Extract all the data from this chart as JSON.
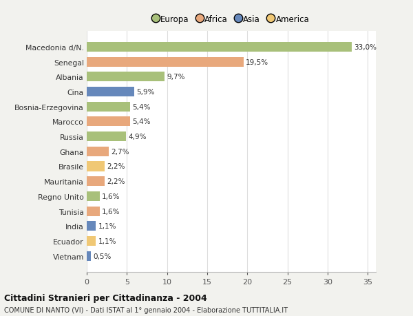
{
  "countries": [
    "Macedonia d/N.",
    "Senegal",
    "Albania",
    "Cina",
    "Bosnia-Erzegovina",
    "Marocco",
    "Russia",
    "Ghana",
    "Brasile",
    "Mauritania",
    "Regno Unito",
    "Tunisia",
    "India",
    "Ecuador",
    "Vietnam"
  ],
  "values": [
    33.0,
    19.5,
    9.7,
    5.9,
    5.4,
    5.4,
    4.9,
    2.7,
    2.2,
    2.2,
    1.6,
    1.6,
    1.1,
    1.1,
    0.5
  ],
  "labels": [
    "33,0%",
    "19,5%",
    "9,7%",
    "5,9%",
    "5,4%",
    "5,4%",
    "4,9%",
    "2,7%",
    "2,2%",
    "2,2%",
    "1,6%",
    "1,6%",
    "1,1%",
    "1,1%",
    "0,5%"
  ],
  "colors": [
    "#a8c07a",
    "#e8a87c",
    "#a8c07a",
    "#6688bb",
    "#a8c07a",
    "#e8a87c",
    "#a8c07a",
    "#e8a87c",
    "#f0c875",
    "#e8a87c",
    "#a8c07a",
    "#e8a87c",
    "#6688bb",
    "#f0c875",
    "#6688bb"
  ],
  "legend": [
    {
      "label": "Europa",
      "color": "#a8c07a"
    },
    {
      "label": "Africa",
      "color": "#e8a87c"
    },
    {
      "label": "Asia",
      "color": "#6688bb"
    },
    {
      "label": "America",
      "color": "#f0c875"
    }
  ],
  "title": "Cittadini Stranieri per Cittadinanza - 2004",
  "subtitle": "COMUNE DI NANTO (VI) - Dati ISTAT al 1° gennaio 2004 - Elaborazione TUTTITALIA.IT",
  "xlim": [
    0,
    36
  ],
  "xticks": [
    0,
    5,
    10,
    15,
    20,
    25,
    30,
    35
  ],
  "background_color": "#f2f2ee",
  "plot_bg_color": "#ffffff",
  "grid_color": "#dddddd"
}
